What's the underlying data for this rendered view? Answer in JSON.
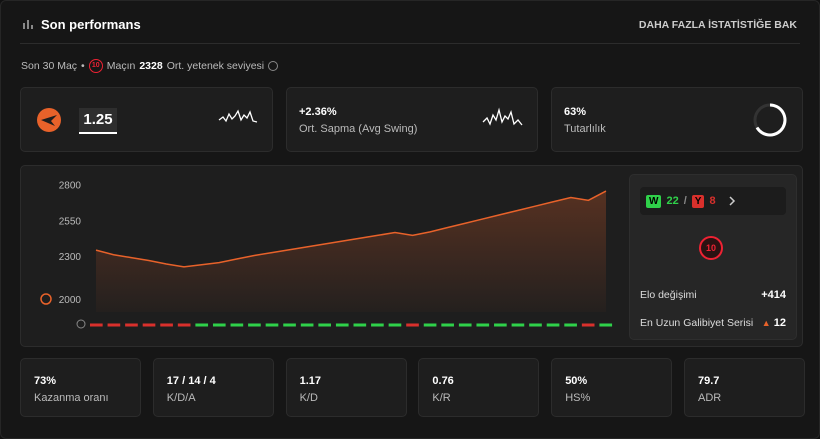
{
  "header": {
    "title": "Son performans",
    "link": "DAHA FAZLA İSTATİSTİĞE BAK"
  },
  "subheader": {
    "period": "Son 30 Maç",
    "separator": "•",
    "level": "10",
    "prefix": "Maçın",
    "average": "2328",
    "suffix": "Ort. yetenek seviyesi"
  },
  "cards": [
    {
      "value": "1.25"
    },
    {
      "value": "+2.36%",
      "label": "Ort. Sapma (Avg Swing)"
    },
    {
      "value": "63%",
      "label": "Tutarlılık"
    }
  ],
  "chart_data": {
    "type": "line",
    "ylim": [
      1920,
      2870
    ],
    "yticks": [
      2000,
      2300,
      2550,
      2800
    ],
    "color": "#e8622a",
    "values": [
      2352,
      2320,
      2300,
      2280,
      2255,
      2235,
      2250,
      2265,
      2290,
      2315,
      2335,
      2355,
      2375,
      2395,
      2415,
      2435,
      2455,
      2475,
      2455,
      2480,
      2510,
      2540,
      2570,
      2600,
      2630,
      2660,
      2690,
      2720,
      2700,
      2765
    ],
    "results": [
      "L",
      "L",
      "L",
      "L",
      "L",
      "L",
      "W",
      "W",
      "W",
      "W",
      "W",
      "W",
      "W",
      "W",
      "W",
      "W",
      "W",
      "W",
      "L",
      "W",
      "W",
      "W",
      "W",
      "W",
      "W",
      "W",
      "W",
      "W",
      "L",
      "W"
    ],
    "result_colors": {
      "W": "#2fd14a",
      "L": "#d9302c"
    }
  },
  "summary": {
    "win_letter": "W",
    "wins": "22",
    "slash": "/",
    "loss_letter": "Y",
    "losses": "8",
    "level": "10",
    "elo_label": "Elo değişimi",
    "elo_value": "+414",
    "streak_label": "En Uzun Galibiyet Serisi",
    "streak_value": "12"
  },
  "stats": [
    {
      "value": "73%",
      "label": "Kazanma oranı"
    },
    {
      "value": "17 / 14 / 4",
      "label": "K/D/A"
    },
    {
      "value": "1.17",
      "label": "K/D"
    },
    {
      "value": "0.76",
      "label": "K/R"
    },
    {
      "value": "50%",
      "label": "HS%"
    },
    {
      "value": "79.7",
      "label": "ADR"
    }
  ]
}
